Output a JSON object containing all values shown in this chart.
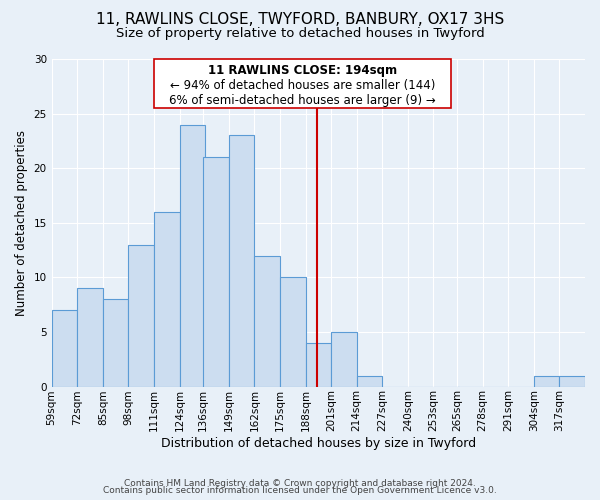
{
  "title": "11, RAWLINS CLOSE, TWYFORD, BANBURY, OX17 3HS",
  "subtitle": "Size of property relative to detached houses in Twyford",
  "xlabel": "Distribution of detached houses by size in Twyford",
  "ylabel": "Number of detached properties",
  "bin_labels": [
    "59sqm",
    "72sqm",
    "85sqm",
    "98sqm",
    "111sqm",
    "124sqm",
    "136sqm",
    "149sqm",
    "162sqm",
    "175sqm",
    "188sqm",
    "201sqm",
    "214sqm",
    "227sqm",
    "240sqm",
    "253sqm",
    "265sqm",
    "278sqm",
    "291sqm",
    "304sqm",
    "317sqm"
  ],
  "bin_edges": [
    59,
    72,
    85,
    98,
    111,
    124,
    136,
    149,
    162,
    175,
    188,
    201,
    214,
    227,
    240,
    253,
    265,
    278,
    291,
    304,
    317,
    330
  ],
  "counts": [
    7,
    9,
    8,
    13,
    16,
    24,
    21,
    23,
    12,
    10,
    4,
    5,
    1,
    0,
    0,
    0,
    0,
    0,
    0,
    1,
    1
  ],
  "bar_color": "#ccddf0",
  "bar_edge_color": "#5b9bd5",
  "bar_edge_width": 0.8,
  "vline_x": 194,
  "vline_color": "#cc0000",
  "vline_linewidth": 1.5,
  "annotation_title": "11 RAWLINS CLOSE: 194sqm",
  "annotation_line1": "← 94% of detached houses are smaller (144)",
  "annotation_line2": "6% of semi-detached houses are larger (9) →",
  "annotation_box_color": "#cc0000",
  "ylim": [
    0,
    30
  ],
  "yticks": [
    0,
    5,
    10,
    15,
    20,
    25,
    30
  ],
  "background_color": "#e8f0f8",
  "grid_color": "#ffffff",
  "footer_line1": "Contains HM Land Registry data © Crown copyright and database right 2024.",
  "footer_line2": "Contains public sector information licensed under the Open Government Licence v3.0.",
  "title_fontsize": 11,
  "subtitle_fontsize": 9.5,
  "xlabel_fontsize": 9,
  "ylabel_fontsize": 8.5,
  "tick_fontsize": 7.5,
  "annotation_fontsize": 8.5,
  "footer_fontsize": 6.5
}
